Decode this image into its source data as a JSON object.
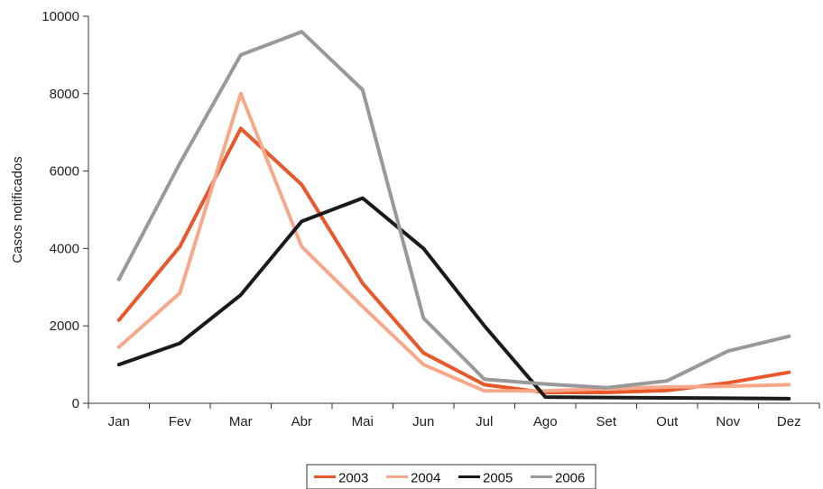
{
  "chart_data": {
    "type": "line",
    "title": "",
    "xlabel": "",
    "ylabel": "Casos notificados",
    "categories": [
      "Jan",
      "Fev",
      "Mar",
      "Abr",
      "Mai",
      "Jun",
      "Jul",
      "Ago",
      "Set",
      "Out",
      "Nov",
      "Dez"
    ],
    "ylim": [
      0,
      10000
    ],
    "yticks": [
      0,
      2000,
      4000,
      6000,
      8000,
      10000
    ],
    "yticks_labels": [
      "0",
      "2000",
      "4000",
      "6000",
      "8000",
      "10000"
    ],
    "grid": false,
    "legend_position": "bottom",
    "series": [
      {
        "name": "2003",
        "color": "#e8582a",
        "values": [
          2150,
          4050,
          7100,
          5650,
          3100,
          1300,
          480,
          280,
          280,
          330,
          530,
          800
        ]
      },
      {
        "name": "2004",
        "color": "#f7a88a",
        "values": [
          1450,
          2850,
          8000,
          4050,
          2500,
          1000,
          320,
          320,
          380,
          420,
          440,
          480
        ]
      },
      {
        "name": "2005",
        "color": "#1a1a1a",
        "values": [
          1000,
          1550,
          2800,
          4700,
          5300,
          4000,
          2000,
          160,
          150,
          140,
          130,
          120
        ]
      },
      {
        "name": "2006",
        "color": "#999999",
        "values": [
          3200,
          6200,
          9000,
          9600,
          8100,
          2200,
          620,
          500,
          400,
          580,
          1350,
          1730
        ]
      }
    ]
  }
}
